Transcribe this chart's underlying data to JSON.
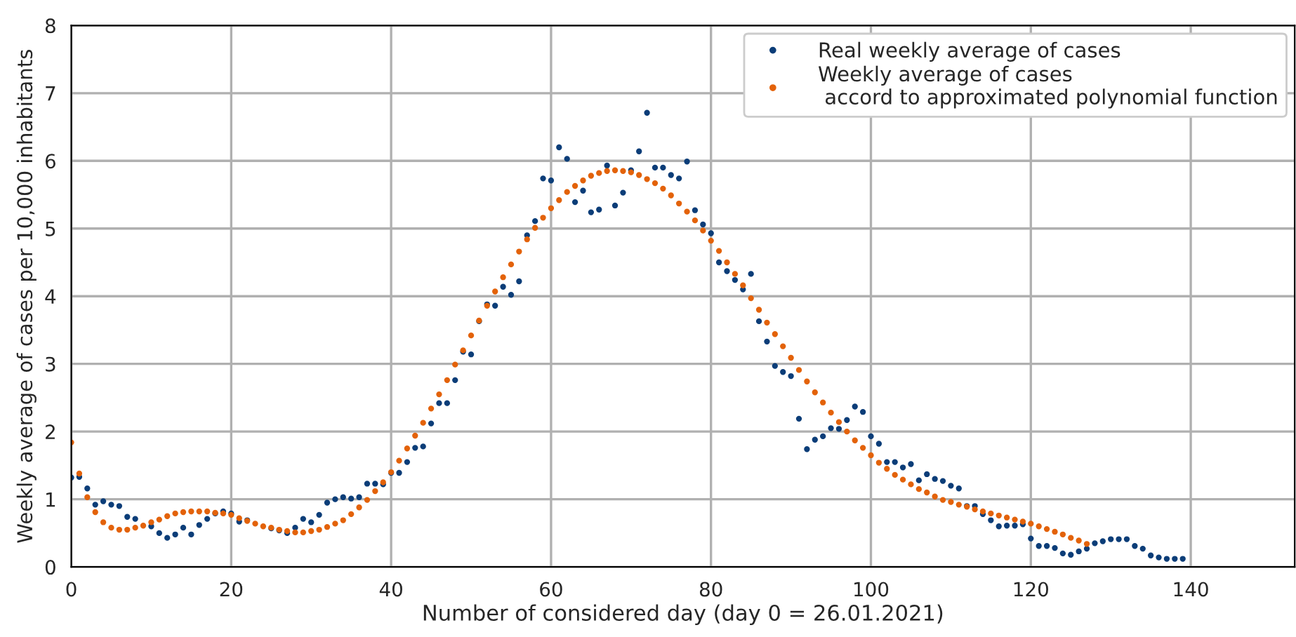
{
  "chart_data": {
    "type": "scatter",
    "xlabel": "Number of considered day (day 0 = 26.01.2021)",
    "ylabel": "Weekly average of cases per 10,000 inhabitants",
    "xlim": [
      0,
      153
    ],
    "ylim": [
      0,
      8
    ],
    "xticks": [
      0,
      20,
      40,
      60,
      80,
      100,
      120,
      140
    ],
    "yticks": [
      0,
      1,
      2,
      3,
      4,
      5,
      6,
      7,
      8
    ],
    "grid": true,
    "legend": "top right",
    "marker": "circle",
    "series": [
      {
        "name": "Real weekly average of cases",
        "color": "#0b3d78",
        "x": [
          0,
          1,
          2,
          3,
          4,
          5,
          6,
          7,
          8,
          9,
          10,
          11,
          12,
          13,
          14,
          15,
          16,
          17,
          18,
          19,
          20,
          21,
          22,
          23,
          24,
          25,
          26,
          27,
          28,
          29,
          30,
          31,
          32,
          33,
          34,
          35,
          36,
          37,
          38,
          39,
          40,
          41,
          42,
          43,
          44,
          45,
          46,
          47,
          48,
          49,
          50,
          51,
          52,
          53,
          54,
          55,
          56,
          57,
          58,
          59,
          60,
          61,
          62,
          63,
          64,
          65,
          66,
          67,
          68,
          69,
          70,
          71,
          72,
          73,
          74,
          75,
          76,
          77,
          78,
          79,
          80,
          81,
          82,
          83,
          84,
          85,
          86,
          87,
          88,
          89,
          90,
          91,
          92,
          93,
          94,
          95,
          96,
          97,
          98,
          99,
          100,
          101,
          102,
          103,
          104,
          105,
          106,
          107,
          108,
          109,
          110,
          111,
          112,
          113,
          114,
          115,
          116,
          117,
          118,
          119,
          120,
          121,
          122,
          123,
          124,
          125,
          126,
          127,
          128,
          129,
          130,
          131,
          132,
          133,
          134,
          135,
          136,
          137,
          138,
          139
        ],
        "values": [
          1.32,
          1.33,
          1.16,
          0.92,
          0.97,
          0.92,
          0.9,
          0.74,
          0.71,
          null,
          0.6,
          0.5,
          0.43,
          0.48,
          0.58,
          0.48,
          0.62,
          0.71,
          0.79,
          0.82,
          0.79,
          0.67,
          0.69,
          null,
          null,
          0.57,
          0.54,
          0.5,
          0.58,
          0.71,
          0.66,
          0.77,
          0.95,
          1.0,
          1.03,
          1.01,
          1.03,
          1.23,
          1.23,
          1.22,
          1.39,
          1.39,
          1.55,
          1.76,
          1.78,
          2.12,
          2.42,
          2.42,
          2.76,
          3.18,
          3.14,
          3.63,
          3.88,
          3.86,
          4.14,
          4.02,
          4.22,
          4.9,
          5.11,
          5.74,
          5.71,
          6.2,
          6.03,
          5.39,
          5.56,
          5.24,
          5.28,
          5.93,
          5.34,
          5.53,
          5.86,
          6.14,
          6.71,
          5.9,
          5.9,
          5.79,
          5.74,
          5.99,
          5.27,
          5.06,
          4.93,
          4.5,
          4.37,
          4.24,
          4.1,
          4.33,
          3.63,
          3.33,
          2.97,
          2.88,
          2.82,
          2.19,
          1.74,
          1.88,
          1.93,
          2.05,
          2.04,
          2.17,
          2.37,
          2.29,
          1.93,
          1.82,
          1.55,
          1.55,
          1.47,
          1.52,
          1.28,
          1.37,
          1.3,
          1.27,
          1.2,
          1.16,
          0.9,
          0.9,
          0.78,
          0.69,
          0.6,
          0.61,
          0.61,
          0.63,
          0.42,
          0.31,
          0.31,
          0.28,
          0.2,
          0.18,
          0.23,
          0.27,
          0.35,
          0.38,
          0.41,
          0.41,
          0.41,
          0.31,
          0.27,
          0.17,
          0.14,
          0.12,
          0.12,
          0.12
        ]
      },
      {
        "name": "Weekly average of cases\n accord to approximated polynomial function",
        "color": "#e36209",
        "x": [
          0,
          1,
          2,
          3,
          4,
          5,
          6,
          7,
          8,
          9,
          10,
          11,
          12,
          13,
          14,
          15,
          16,
          17,
          18,
          19,
          20,
          21,
          22,
          23,
          24,
          25,
          26,
          27,
          28,
          29,
          30,
          31,
          32,
          33,
          34,
          35,
          36,
          37,
          38,
          39,
          40,
          41,
          42,
          43,
          44,
          45,
          46,
          47,
          48,
          49,
          50,
          51,
          52,
          53,
          54,
          55,
          56,
          57,
          58,
          59,
          60,
          61,
          62,
          63,
          64,
          65,
          66,
          67,
          68,
          69,
          70,
          71,
          72,
          73,
          74,
          75,
          76,
          77,
          78,
          79,
          80,
          81,
          82,
          83,
          84,
          85,
          86,
          87,
          88,
          89,
          90,
          91,
          92,
          93,
          94,
          95,
          96,
          97,
          98,
          99,
          100,
          101,
          102,
          103,
          104,
          105,
          106,
          107,
          108,
          109,
          110,
          111,
          112,
          113,
          114,
          115,
          116,
          117,
          118,
          119,
          120,
          121,
          122,
          123,
          124,
          125,
          126,
          127
        ],
        "values": [
          1.84,
          1.38,
          1.03,
          0.81,
          0.66,
          0.58,
          0.55,
          0.55,
          0.58,
          0.61,
          0.66,
          0.7,
          0.75,
          0.79,
          0.81,
          0.82,
          0.82,
          0.82,
          0.8,
          0.79,
          0.77,
          0.72,
          0.68,
          0.64,
          0.6,
          0.58,
          0.55,
          0.53,
          0.51,
          0.51,
          0.53,
          0.55,
          0.59,
          0.64,
          0.69,
          0.78,
          0.88,
          0.99,
          1.12,
          1.25,
          1.4,
          1.57,
          1.75,
          1.94,
          2.13,
          2.34,
          2.55,
          2.76,
          2.99,
          3.2,
          3.42,
          3.64,
          3.86,
          4.07,
          4.28,
          4.47,
          4.66,
          4.84,
          5.01,
          5.16,
          5.3,
          5.42,
          5.54,
          5.63,
          5.71,
          5.78,
          5.82,
          5.85,
          5.86,
          5.85,
          5.83,
          5.79,
          5.73,
          5.67,
          5.59,
          5.49,
          5.37,
          5.25,
          5.12,
          4.97,
          4.82,
          4.67,
          4.5,
          4.33,
          4.16,
          3.97,
          3.8,
          3.61,
          3.44,
          3.26,
          3.09,
          2.91,
          2.74,
          2.58,
          2.43,
          2.28,
          2.14,
          2.0,
          1.87,
          1.76,
          1.65,
          1.54,
          1.45,
          1.36,
          1.29,
          1.22,
          1.15,
          1.1,
          1.04,
          0.99,
          0.96,
          0.92,
          0.89,
          0.85,
          0.82,
          0.79,
          0.76,
          0.73,
          0.7,
          0.67,
          0.64,
          0.6,
          0.56,
          0.52,
          0.48,
          0.43,
          0.39,
          0.34
        ]
      }
    ]
  }
}
